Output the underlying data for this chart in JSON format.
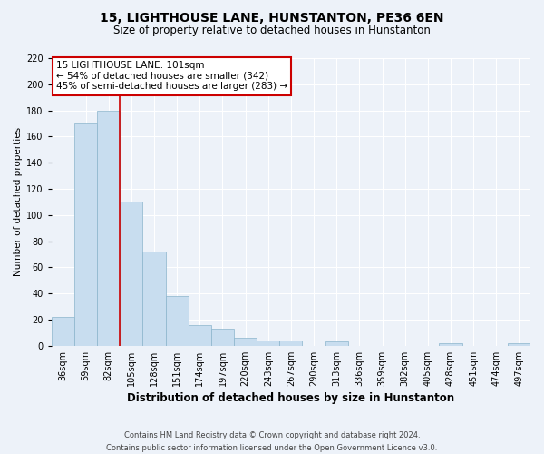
{
  "title": "15, LIGHTHOUSE LANE, HUNSTANTON, PE36 6EN",
  "subtitle": "Size of property relative to detached houses in Hunstanton",
  "xlabel": "Distribution of detached houses by size in Hunstanton",
  "ylabel": "Number of detached properties",
  "bar_labels": [
    "36sqm",
    "59sqm",
    "82sqm",
    "105sqm",
    "128sqm",
    "151sqm",
    "174sqm",
    "197sqm",
    "220sqm",
    "243sqm",
    "267sqm",
    "290sqm",
    "313sqm",
    "336sqm",
    "359sqm",
    "382sqm",
    "405sqm",
    "428sqm",
    "451sqm",
    "474sqm",
    "497sqm"
  ],
  "bar_values": [
    22,
    170,
    180,
    110,
    72,
    38,
    16,
    13,
    6,
    4,
    4,
    0,
    3,
    0,
    0,
    0,
    0,
    2,
    0,
    0,
    2
  ],
  "bar_color": "#c8ddef",
  "bar_edge_color": "#8ab4cc",
  "vline_color": "#cc0000",
  "vline_x_index": 2.5,
  "annotation_title": "15 LIGHTHOUSE LANE: 101sqm",
  "annotation_line1": "← 54% of detached houses are smaller (342)",
  "annotation_line2": "45% of semi-detached houses are larger (283) →",
  "annotation_box_color": "#ffffff",
  "annotation_box_edge_color": "#cc0000",
  "ylim": [
    0,
    220
  ],
  "yticks": [
    0,
    20,
    40,
    60,
    80,
    100,
    120,
    140,
    160,
    180,
    200,
    220
  ],
  "footer1": "Contains HM Land Registry data © Crown copyright and database right 2024.",
  "footer2": "Contains public sector information licensed under the Open Government Licence v3.0.",
  "bg_color": "#edf2f9",
  "grid_color": "#ffffff",
  "title_fontsize": 10,
  "subtitle_fontsize": 8.5,
  "xlabel_fontsize": 8.5,
  "ylabel_fontsize": 7.5,
  "tick_fontsize": 7,
  "annotation_fontsize": 7.5,
  "footer_fontsize": 6
}
